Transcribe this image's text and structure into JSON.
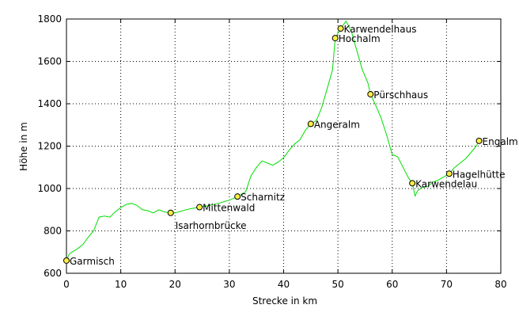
{
  "chart_data": {
    "type": "line",
    "title": "",
    "xlabel": "Strecke in km",
    "ylabel": "Höhe in m",
    "xlim": [
      0,
      80
    ],
    "ylim": [
      600,
      1800
    ],
    "xticks": [
      0,
      10,
      20,
      30,
      40,
      50,
      60,
      70,
      80
    ],
    "yticks": [
      600,
      800,
      1000,
      1200,
      1400,
      1600,
      1800
    ],
    "grid": true,
    "series": [
      {
        "color": "#00dd00",
        "x": [
          0,
          0.5,
          1,
          2,
          3,
          4,
          5,
          6,
          7,
          8,
          9,
          10,
          11,
          12,
          13,
          14,
          15,
          16,
          17,
          18,
          19,
          20,
          21,
          22,
          23,
          24.5,
          26,
          28,
          30,
          31.5,
          33,
          34,
          35,
          36,
          37,
          38,
          39,
          40,
          41,
          42,
          43,
          44,
          45,
          46,
          47,
          48,
          49,
          49.5,
          50.5,
          51.5,
          52.5,
          53.5,
          54.5,
          55.5,
          56,
          57,
          58,
          59,
          60,
          61,
          62,
          63,
          63.7,
          64.2,
          64.7,
          65.5,
          66.5,
          67.5,
          68.5,
          69.5,
          70.5,
          71.5,
          72.5,
          73.5,
          74.5,
          75.5,
          76
        ],
        "y": [
          660,
          690,
          700,
          715,
          735,
          770,
          800,
          865,
          870,
          865,
          890,
          910,
          925,
          930,
          920,
          900,
          895,
          885,
          900,
          890,
          885,
          885,
          892,
          900,
          905,
          912,
          918,
          930,
          945,
          962,
          985,
          1060,
          1100,
          1130,
          1120,
          1110,
          1125,
          1145,
          1180,
          1210,
          1230,
          1275,
          1305,
          1320,
          1380,
          1470,
          1560,
          1710,
          1755,
          1790,
          1740,
          1650,
          1560,
          1500,
          1445,
          1390,
          1330,
          1250,
          1160,
          1150,
          1100,
          1050,
          1025,
          965,
          990,
          1005,
          1010,
          1030,
          1040,
          1055,
          1070,
          1100,
          1120,
          1140,
          1170,
          1200,
          1225
        ]
      }
    ],
    "waypoints": [
      {
        "name": "Garmisch",
        "x": 0,
        "y": 660,
        "pos": "right"
      },
      {
        "name": "Isarhornbrücke",
        "x": 19.2,
        "y": 885,
        "pos": "below"
      },
      {
        "name": "Mittenwald",
        "x": 24.5,
        "y": 912,
        "pos": "right"
      },
      {
        "name": "Scharnitz",
        "x": 31.5,
        "y": 962,
        "pos": "right"
      },
      {
        "name": "Angeralm",
        "x": 45,
        "y": 1305,
        "pos": "right"
      },
      {
        "name": "Hochalm",
        "x": 49.5,
        "y": 1710,
        "pos": "right"
      },
      {
        "name": "Karwendelhaus",
        "x": 50.5,
        "y": 1755,
        "pos": "right"
      },
      {
        "name": "Pürschhaus",
        "x": 56,
        "y": 1445,
        "pos": "right"
      },
      {
        "name": "Karwendelau",
        "x": 63.7,
        "y": 1025,
        "pos": "right"
      },
      {
        "name": "Hagelhütte",
        "x": 70.5,
        "y": 1070,
        "pos": "right"
      },
      {
        "name": "Engalm",
        "x": 76,
        "y": 1225,
        "pos": "right"
      }
    ],
    "marker_color": "#ffee44"
  }
}
